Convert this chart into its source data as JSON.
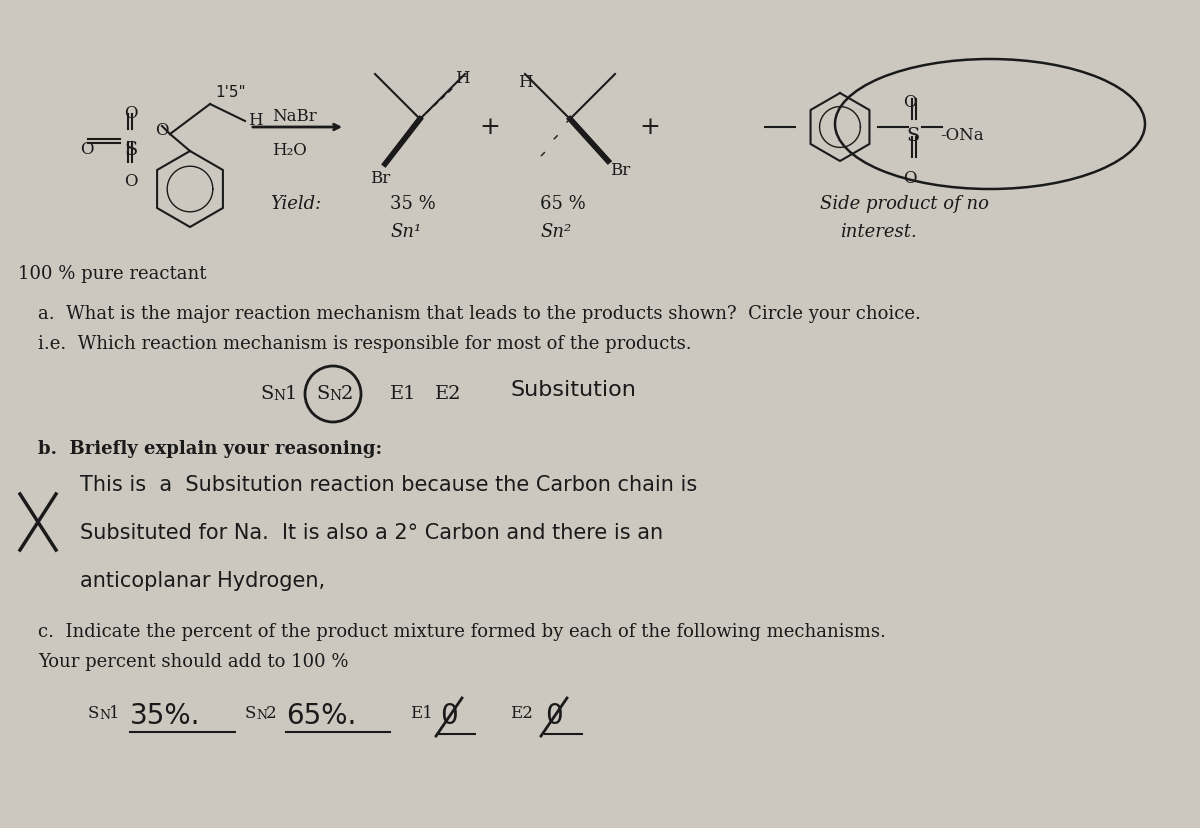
{
  "bg_color": "#ccc8c0",
  "paper_color": "#d8d4cc",
  "ink_color": "#1a1a1a",
  "reaction_nabr": "NaBr",
  "reaction_h2o": "H₂O",
  "yield_label": "Yield:",
  "yield_35": "35 %",
  "sn1_label": "Sn¹",
  "yield_65": "65 %",
  "sn2_label": "Sn²",
  "side_product_1": "Side product of no",
  "side_product_2": "interest.",
  "pure_reactant": "100 % pure reactant",
  "q_a_1": "a.  What is the major reaction mechanism that leads to the products shown?  Circle your choice.",
  "q_a_2": "i.e.  Which reaction mechanism is responsible for most of the products.",
  "hw_subsitution": "Subsitution",
  "q_b": "b.  Briefly explain your reasoning:",
  "hw_line1": "This is  a  Subsitution reaction because the Carbon chain is",
  "hw_line2": "Subsituted for Na.  It is also a 2° Carbon and there is an",
  "hw_line3": "anticoplanar Hydrogen,",
  "q_c_1": "c.  Indicate the percent of the product mixture formed by each of the following mechanisms.",
  "q_c_2": "Your percent should add to 100 %"
}
